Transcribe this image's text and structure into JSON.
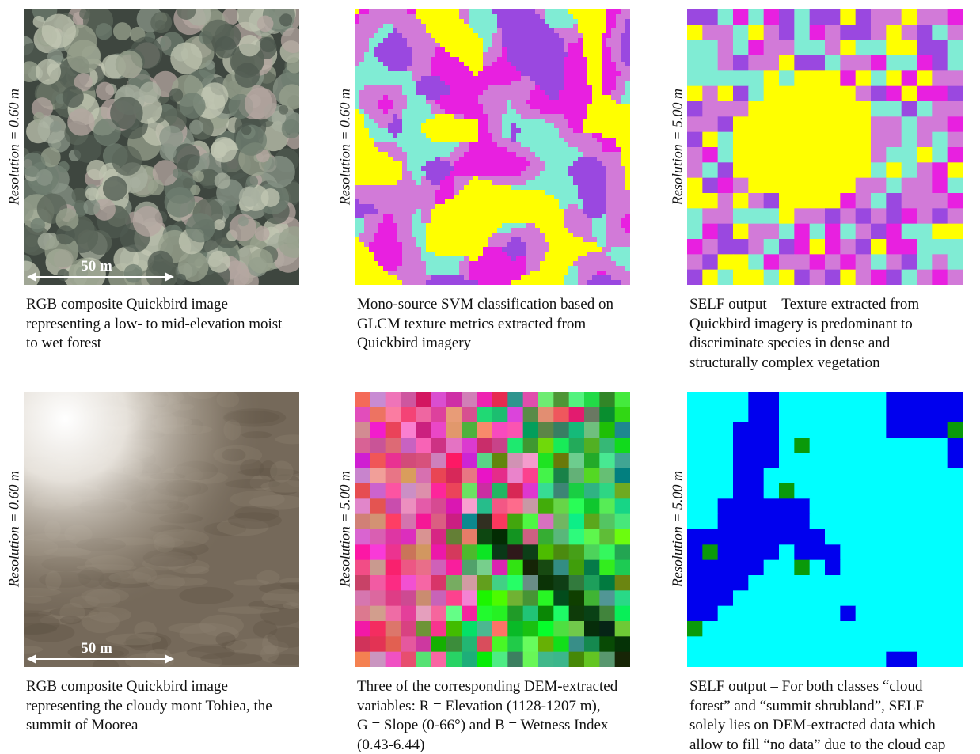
{
  "panels": [
    {
      "resolution": "Resolution = 0.60 m",
      "scale": "50 m",
      "caption": [
        "RGB composite Quickbird image",
        "representing a low- to mid-elevation moist",
        "to wet forest"
      ]
    },
    {
      "resolution": "Resolution = 0.60 m",
      "caption": [
        "Mono-source SVM classification based on",
        "GLCM texture metrics extracted from",
        "Quickbird imagery"
      ]
    },
    {
      "resolution": "Resolution = 5.00 m",
      "caption": [
        "SELF output – Texture extracted from",
        "Quickbird imagery is predominant to",
        "discriminate species in dense and",
        "structurally complex vegetation"
      ]
    },
    {
      "resolution": "Resolution = 0.60 m",
      "scale": "50 m",
      "caption": [
        "RGB composite Quickbird image",
        "representing the cloudy mont Tohiea, the",
        "summit of Moorea"
      ]
    },
    {
      "resolution": "Resolution = 5.00 m",
      "caption": [
        "Three of the corresponding DEM-extracted",
        "variables: R = Elevation (1128-1207 m),",
        "G = Slope (0-66°) and B = Wetness Index",
        "(0.43-6.44)"
      ]
    },
    {
      "resolution": "Resolution = 5.00 m",
      "caption": [
        "SELF output – For both classes “cloud",
        "forest” and “summit shrubland”, SELF",
        "solely lies on DEM-extracted data which",
        "allow to fill “no data” due to the cloud cap"
      ]
    }
  ]
}
